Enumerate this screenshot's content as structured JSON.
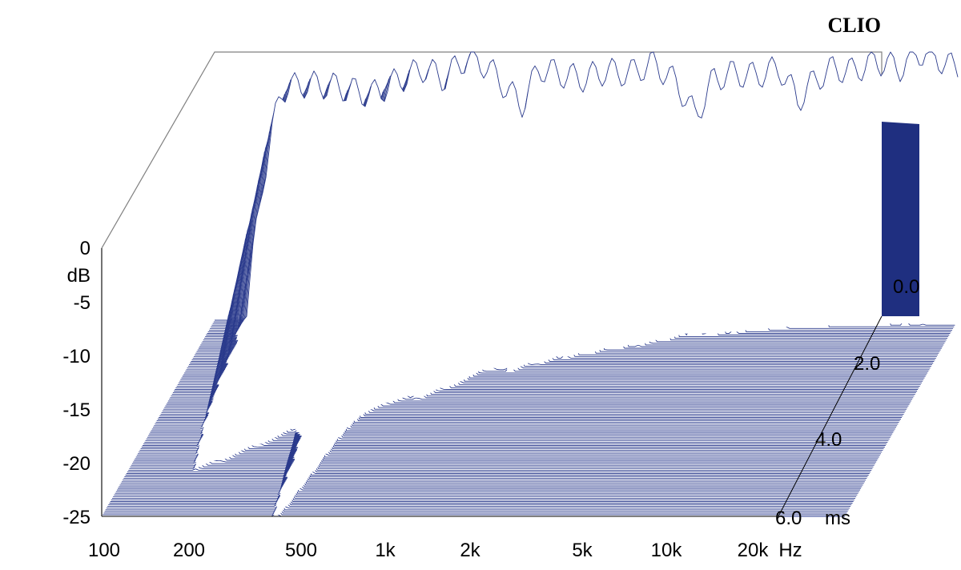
{
  "chart_data": {
    "type": "waterfall",
    "brand": "CLIO",
    "x_axis": {
      "scale": "log",
      "range": [
        100,
        30000
      ],
      "tick_labels": [
        "100",
        "200",
        "500",
        "1k",
        "2k",
        "5k",
        "10k",
        "20k"
      ],
      "tick_values": [
        100,
        200,
        500,
        1000,
        2000,
        5000,
        10000,
        20000
      ],
      "unit": "Hz"
    },
    "y_axis": {
      "label": "dB",
      "range": [
        -25,
        0
      ],
      "tick_labels": [
        "0",
        "-5",
        "-10",
        "-15",
        "-20",
        "-25"
      ],
      "tick_values": [
        0,
        -5,
        -10,
        -15,
        -20,
        -25
      ]
    },
    "z_axis": {
      "range": [
        0,
        6
      ],
      "tick_labels": [
        "0.0",
        "2.0",
        "4.0",
        "6.0"
      ],
      "tick_values": [
        0,
        2,
        4,
        6
      ],
      "unit": "ms"
    },
    "slice_count": 120,
    "colors": {
      "trace": "#2a3a8c",
      "edge": "#1f2f80",
      "frame": "#808080"
    },
    "grid": false
  }
}
